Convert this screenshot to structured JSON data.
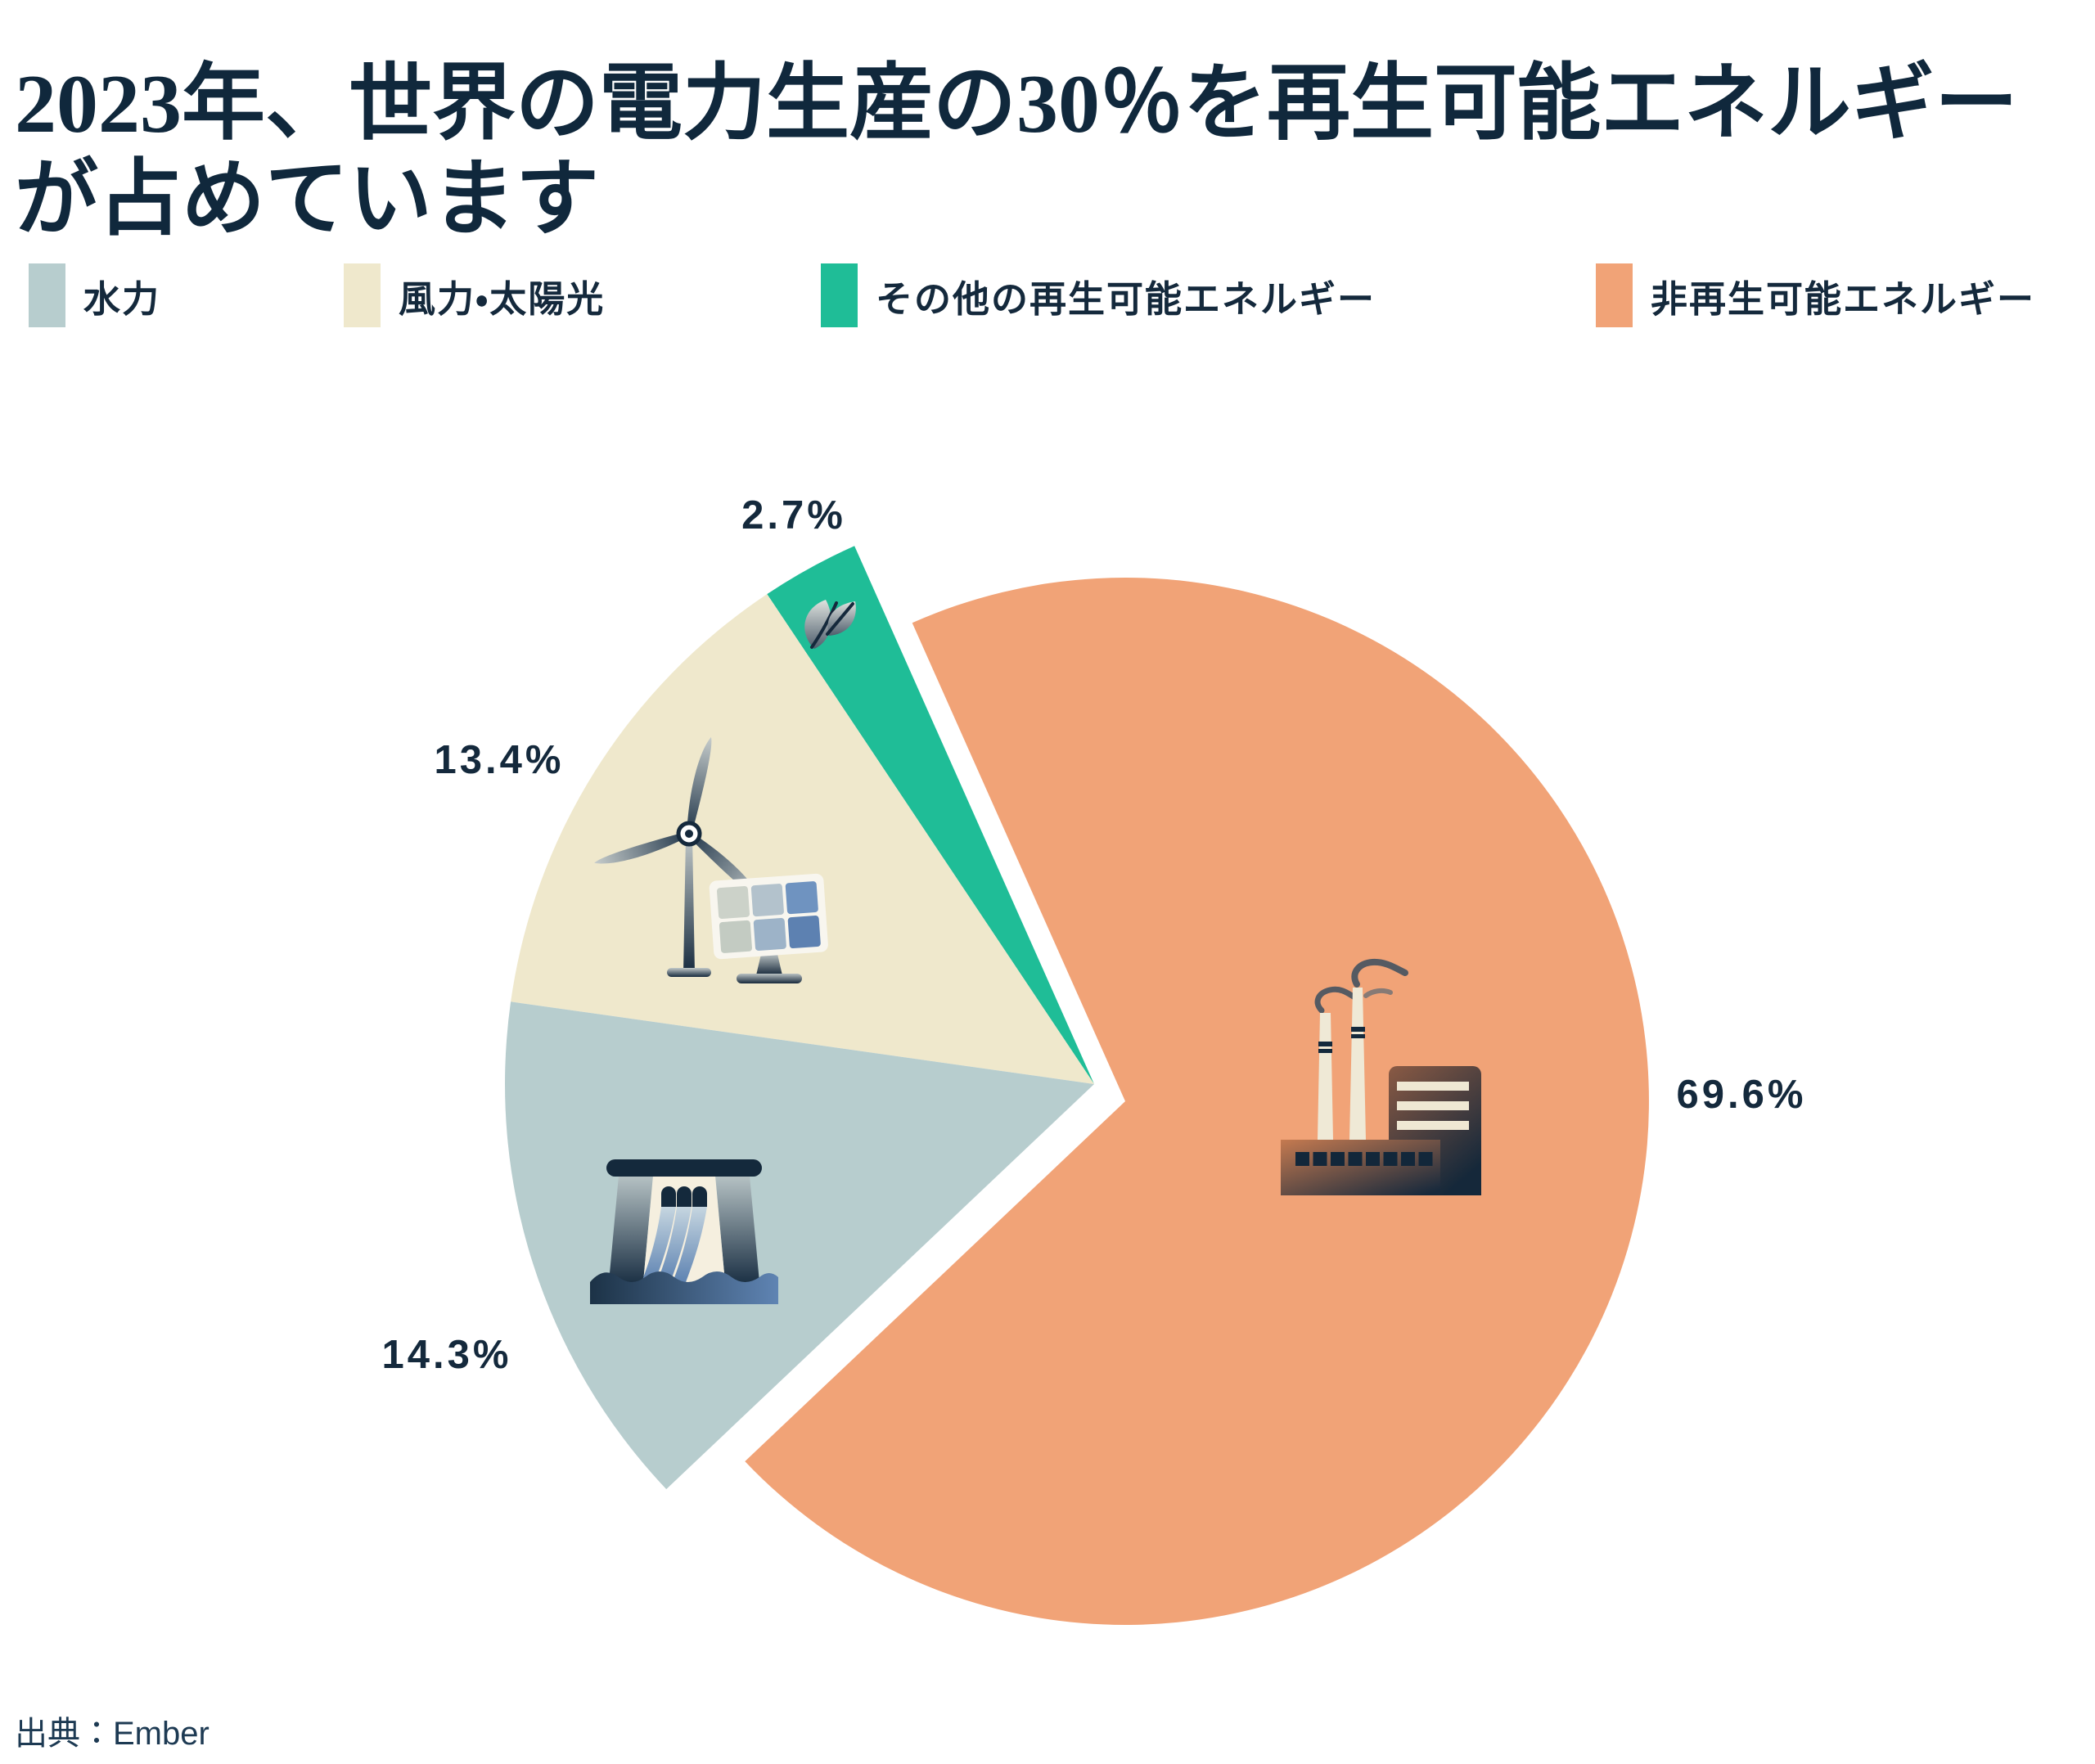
{
  "page": {
    "background": "#ffffff"
  },
  "title": {
    "line1": "2023年、世界の電力生産の30％を再生可能エネルギー",
    "line2": "が占めています",
    "color": "#10283c"
  },
  "legend": {
    "items": [
      {
        "label": "水力",
        "color": "#b7cdce"
      },
      {
        "label": "風力・太陽光",
        "color": "#efe8cc"
      },
      {
        "label": "その他の再生可能エネルギー",
        "color": "#1fbd97"
      },
      {
        "label": "非再生可能エネルギー",
        "color": "#f1a377"
      }
    ]
  },
  "chart_data": {
    "type": "pie",
    "title": "2023年、世界の電力生産の30％を再生可能エネルギーが占めています",
    "unit": "%",
    "legend_position": "top",
    "start_angle_deg": 114,
    "slices": [
      {
        "id": "other-renewables",
        "label": "その他の再生可能エネルギー",
        "value": 2.7,
        "display": "2.7%",
        "color": "#1fbd97",
        "icon": "leaf-icon",
        "exploded": false
      },
      {
        "id": "wind-solar",
        "label": "風力・太陽光",
        "value": 13.4,
        "display": "13.4%",
        "color": "#efe8cc",
        "icon": "wind-solar-icon",
        "exploded": false
      },
      {
        "id": "hydro",
        "label": "水力",
        "value": 14.3,
        "display": "14.3%",
        "color": "#b7cdce",
        "icon": "hydro-dam-icon",
        "exploded": false
      },
      {
        "id": "non-renewable",
        "label": "非再生可能エネルギー",
        "value": 69.6,
        "display": "69.6%",
        "color": "#f1a377",
        "icon": "factory-icon",
        "exploded": true
      }
    ]
  },
  "source": {
    "text": "出典：Ember"
  }
}
